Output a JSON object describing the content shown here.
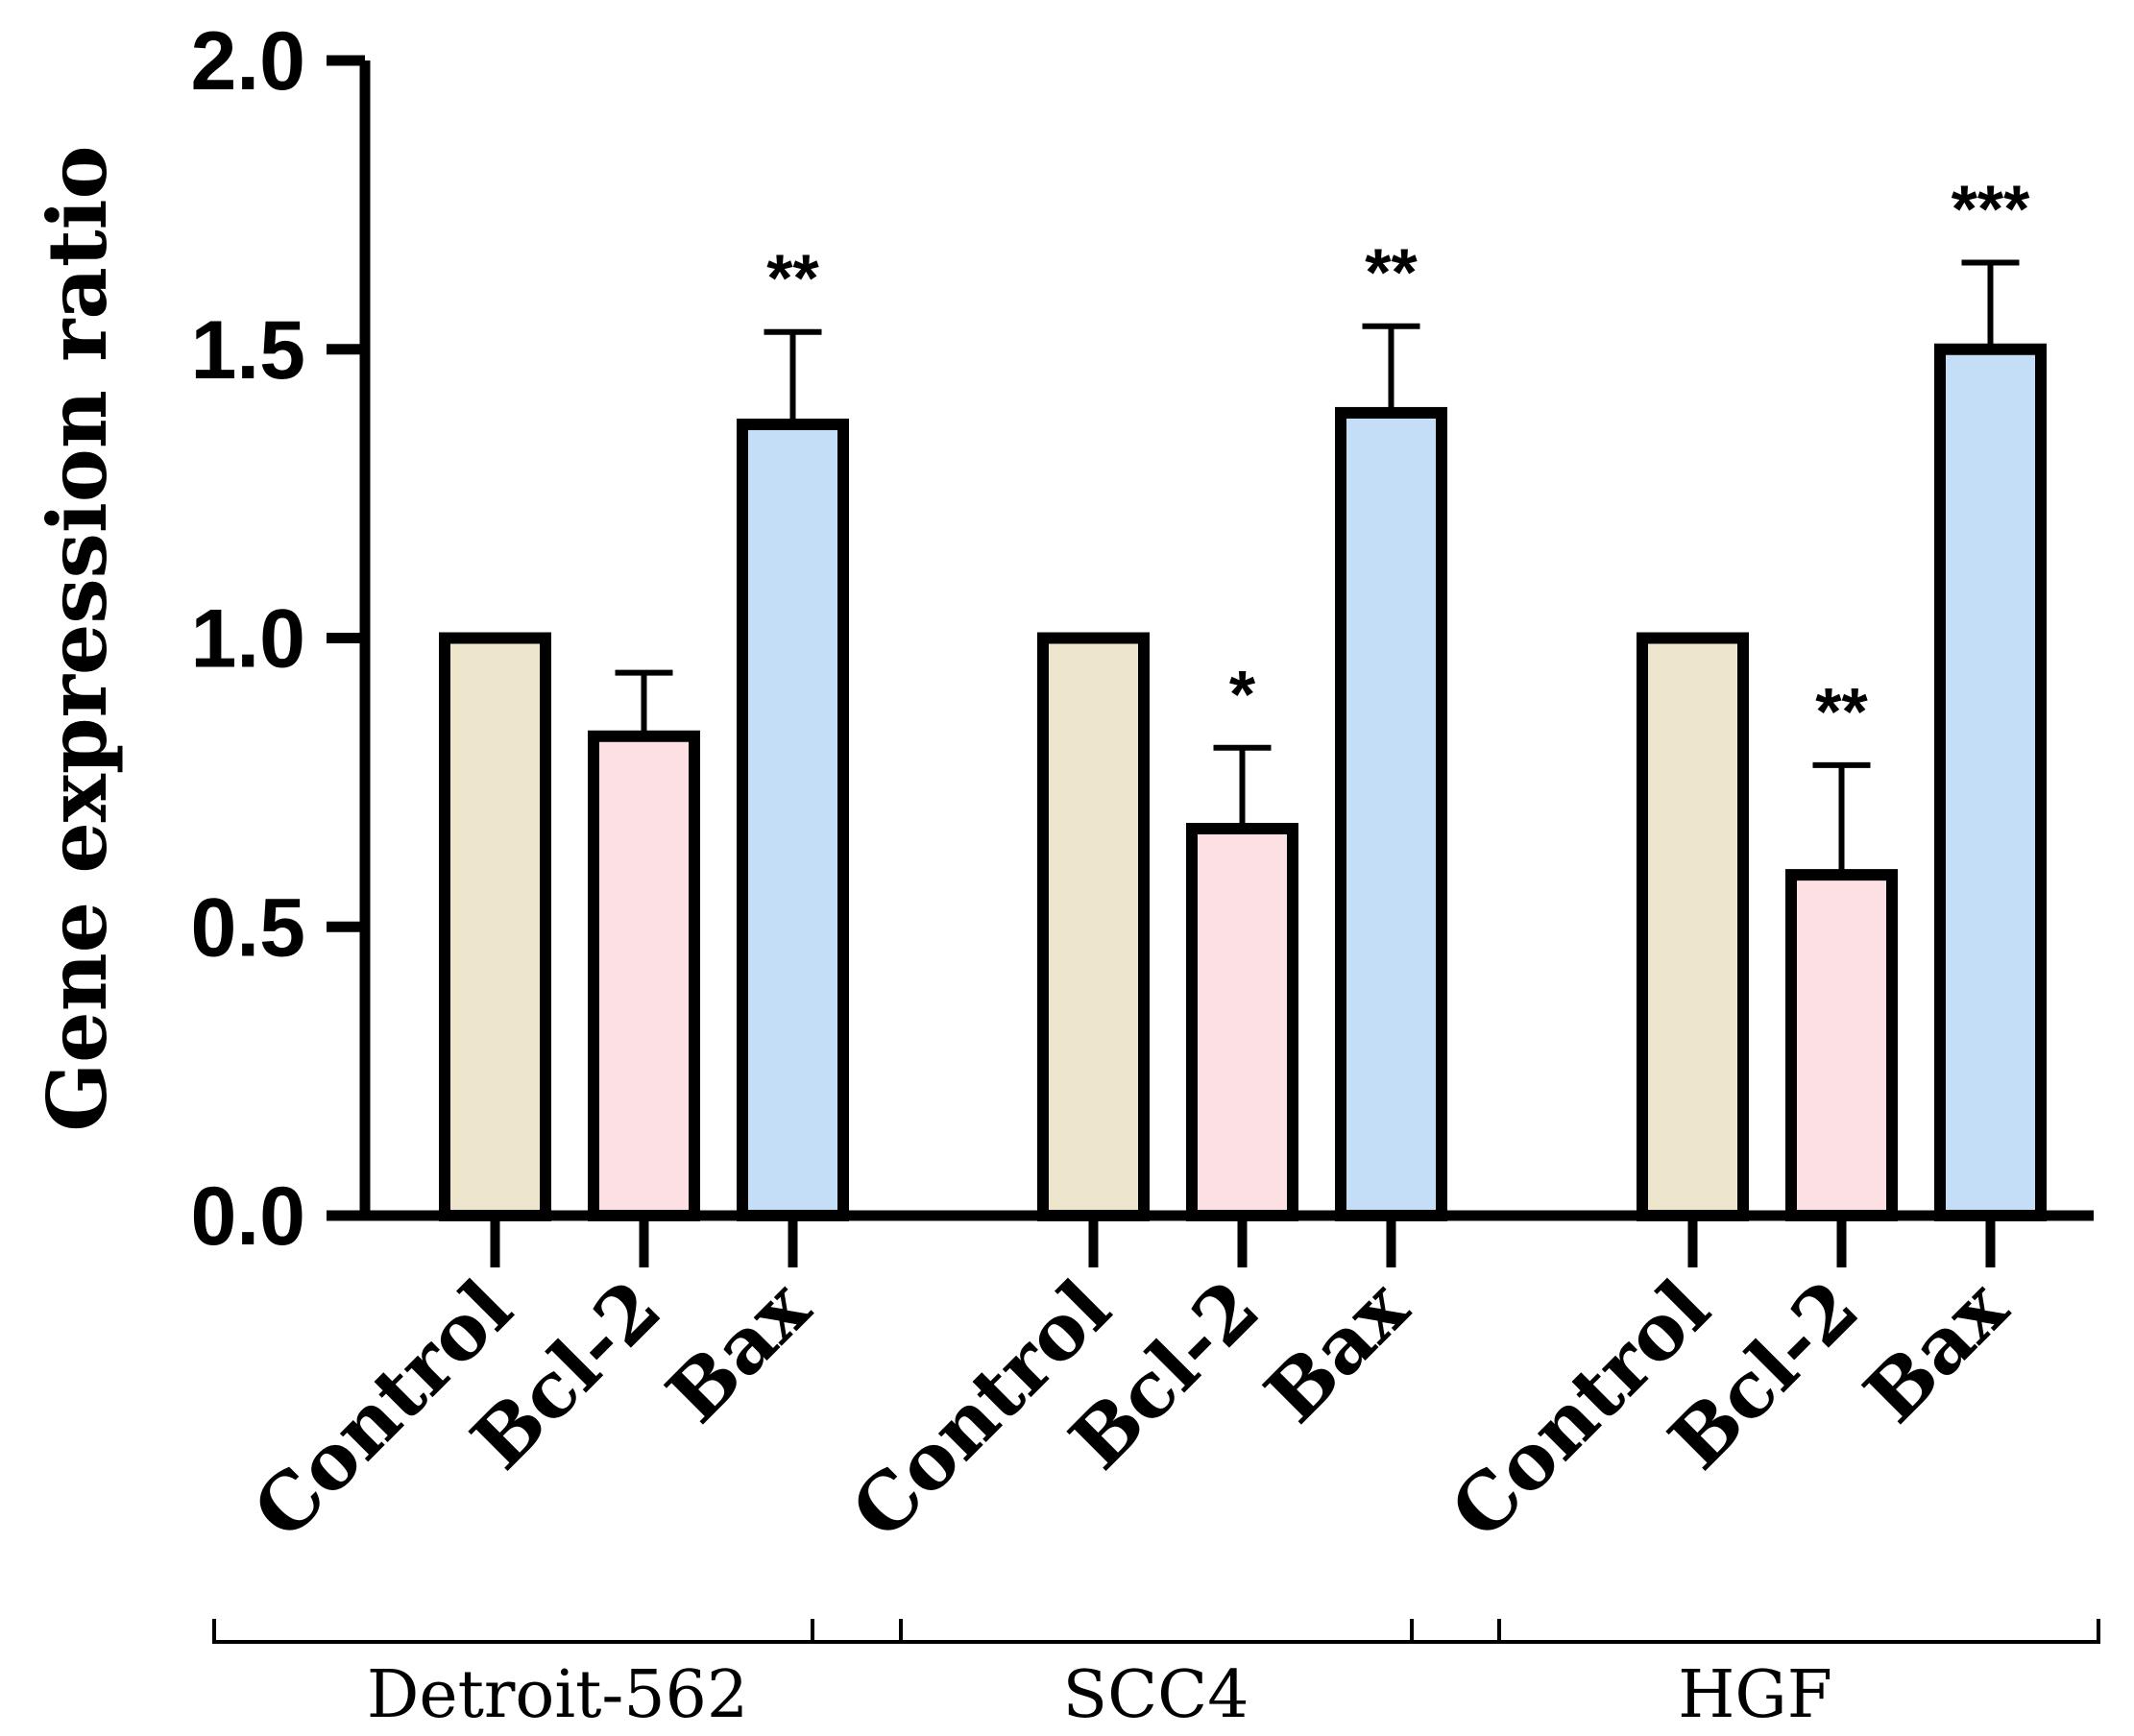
{
  "chart_data": {
    "type": "bar",
    "title": "",
    "xlabel": "",
    "ylabel": "Gene expression ratio",
    "ylim": [
      0,
      2.0
    ],
    "yticks": [
      0.0,
      0.5,
      1.0,
      1.5,
      2.0
    ],
    "ytick_labels": [
      "0.0",
      "0.5",
      "1.0",
      "1.5",
      "2.0"
    ],
    "grid": false,
    "groups": [
      {
        "name": "Detroit-562",
        "bars": [
          {
            "label": "Control",
            "value": 1.0,
            "error": null,
            "sig": "",
            "color": "#EDE6CC"
          },
          {
            "label": "Bcl-2",
            "value": 0.83,
            "error": 0.11,
            "sig": "",
            "color": "#FDE0E3"
          },
          {
            "label": "Bax",
            "value": 1.37,
            "error": 0.16,
            "sig": "**",
            "color": "#C4DEF8"
          }
        ]
      },
      {
        "name": "SCC4",
        "bars": [
          {
            "label": "Control",
            "value": 1.0,
            "error": null,
            "sig": "",
            "color": "#EDE6CC"
          },
          {
            "label": "Bcl-2",
            "value": 0.67,
            "error": 0.14,
            "sig": "*",
            "color": "#FDE0E3"
          },
          {
            "label": "Bax",
            "value": 1.39,
            "error": 0.15,
            "sig": "**",
            "color": "#C4DEF8"
          }
        ]
      },
      {
        "name": "HGF",
        "bars": [
          {
            "label": "Control",
            "value": 1.0,
            "error": null,
            "sig": "",
            "color": "#EDE6CC"
          },
          {
            "label": "Bcl-2",
            "value": 0.59,
            "error": 0.19,
            "sig": "**",
            "color": "#FDE0E3"
          },
          {
            "label": "Bax",
            "value": 1.5,
            "error": 0.15,
            "sig": "***",
            "color": "#C4DEF8"
          }
        ]
      }
    ]
  }
}
